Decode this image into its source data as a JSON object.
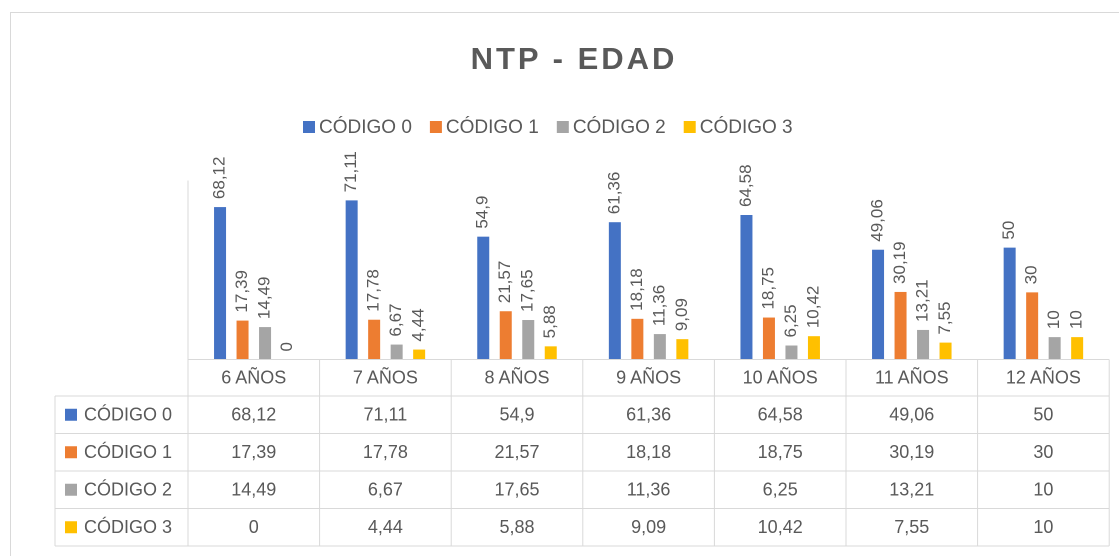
{
  "chart_data": {
    "type": "bar",
    "title": "NTP - EDAD",
    "categories": [
      "6 AÑOS",
      "7 AÑOS",
      "8 AÑOS",
      "9 AÑOS",
      "10 AÑOS",
      "11 AÑOS",
      "12 AÑOS"
    ],
    "series": [
      {
        "name": "CÓDIGO 0",
        "color": "#4472c4",
        "values": [
          68.12,
          71.11,
          54.9,
          61.36,
          64.58,
          49.06,
          50
        ],
        "value_labels": [
          "68,12",
          "71,11",
          "54,9",
          "61,36",
          "64,58",
          "49,06",
          "50"
        ]
      },
      {
        "name": "CÓDIGO 1",
        "color": "#ed7d31",
        "values": [
          17.39,
          17.78,
          21.57,
          18.18,
          18.75,
          30.19,
          30
        ],
        "value_labels": [
          "17,39",
          "17,78",
          "21,57",
          "18,18",
          "18,75",
          "30,19",
          "30"
        ]
      },
      {
        "name": "CÓDIGO 2",
        "color": "#a5a5a5",
        "values": [
          14.49,
          6.67,
          17.65,
          11.36,
          6.25,
          13.21,
          10
        ],
        "value_labels": [
          "14,49",
          "6,67",
          "17,65",
          "11,36",
          "6,25",
          "13,21",
          "10"
        ]
      },
      {
        "name": "CÓDIGO 3",
        "color": "#ffc000",
        "values": [
          0,
          4.44,
          5.88,
          9.09,
          10.42,
          7.55,
          10
        ],
        "value_labels": [
          "0",
          "4,44",
          "5,88",
          "9,09",
          "10,42",
          "7,55",
          "10"
        ]
      }
    ],
    "ylim": [
      0,
      80
    ],
    "legend": "top",
    "data_table": true
  }
}
